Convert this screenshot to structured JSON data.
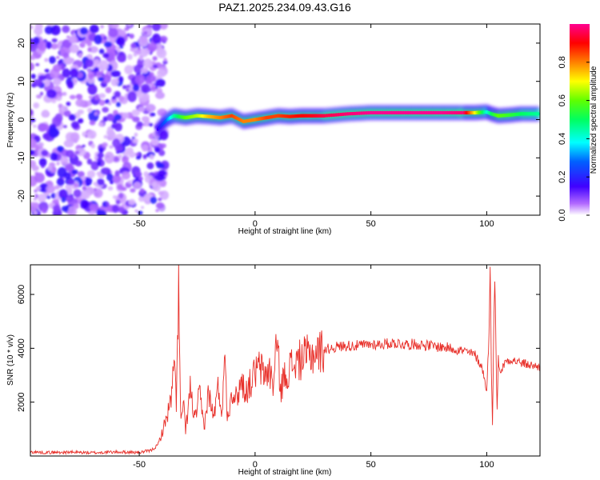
{
  "chart_data": [
    {
      "type": "heatmap",
      "title": "PAZ1.2025.234.09.43.G16",
      "xlabel": "Height of straight line (km)",
      "ylabel": "Frequency (Hz)",
      "xlim": [
        -97,
        123
      ],
      "ylim": [
        -25,
        25
      ],
      "xticks": [
        -50,
        0,
        50,
        100
      ],
      "xtick_labels": [
        "-50",
        "0",
        "50",
        "100"
      ],
      "yticks": [
        -20,
        -10,
        0,
        10,
        20
      ],
      "ytick_labels": [
        "-20",
        "-10",
        "0",
        "10",
        "20"
      ],
      "noise_region_x": [
        -97,
        -40
      ],
      "ridge": {
        "x": [
          -42,
          -38,
          -35,
          -30,
          -25,
          -20,
          -15,
          -10,
          -5,
          0,
          5,
          10,
          15,
          20,
          25,
          30,
          40,
          50,
          60,
          70,
          80,
          90,
          95,
          100,
          102,
          105,
          110,
          115,
          123
        ],
        "freq_hz": [
          -2.5,
          0,
          1,
          0.5,
          1,
          0.8,
          0.5,
          1,
          -0.5,
          0,
          0.5,
          1,
          0.8,
          1,
          1,
          1,
          1.5,
          1.8,
          1.8,
          1.8,
          1.8,
          1.8,
          1.8,
          2,
          1.5,
          1,
          1.2,
          1.5,
          1.5
        ],
        "amplitude": [
          0.15,
          0.3,
          0.45,
          0.6,
          0.65,
          0.75,
          0.8,
          0.85,
          0.8,
          0.8,
          0.85,
          0.85,
          0.88,
          0.9,
          0.92,
          0.95,
          0.98,
          1,
          1,
          1,
          1,
          0.98,
          0.7,
          0.4,
          0.5,
          0.6,
          0.55,
          0.5,
          0.45
        ]
      },
      "colorbar": {
        "label": "Normalized spectral amplitude",
        "range": [
          0,
          1
        ],
        "ticks": [
          0,
          0.2,
          0.4,
          0.6,
          0.8
        ],
        "tick_labels": [
          "0.0",
          "0.2",
          "0.4",
          "0.6",
          "0.8"
        ]
      }
    },
    {
      "type": "line",
      "title": "",
      "xlabel": "Height of straight line (km)",
      "ylabel": "SNR (10 * v/v)",
      "xlim": [
        -97,
        123
      ],
      "ylim": [
        0,
        7100
      ],
      "xticks": [
        -50,
        0,
        50,
        100
      ],
      "xtick_labels": [
        "-50",
        "0",
        "50",
        "100"
      ],
      "yticks": [
        2000,
        4000,
        6000
      ],
      "ytick_labels": [
        "2000",
        "4000",
        "6000"
      ],
      "series": [
        {
          "name": "SNR",
          "color": "#e8302a",
          "x": [
            -97,
            -90,
            -80,
            -70,
            -60,
            -50,
            -45,
            -42,
            -40,
            -38,
            -36,
            -35,
            -34,
            -33,
            -32.5,
            -32,
            -31,
            -30,
            -28,
            -26,
            -24,
            -22,
            -20,
            -18,
            -16,
            -14,
            -13,
            -12,
            -10,
            -8,
            -6,
            -4,
            -2,
            0,
            2,
            4,
            6,
            8,
            9,
            10,
            11,
            12,
            15,
            20,
            25,
            30,
            35,
            40,
            45,
            50,
            55,
            60,
            65,
            70,
            75,
            80,
            85,
            90,
            95,
            98,
            100,
            101,
            101.5,
            102,
            102.5,
            103,
            103.5,
            104,
            104.5,
            105,
            106,
            108,
            110,
            115,
            120,
            123
          ],
          "values": [
            150,
            130,
            140,
            120,
            150,
            130,
            200,
            400,
            900,
            1500,
            2200,
            3500,
            2000,
            6500,
            3000,
            1200,
            2000,
            900,
            2500,
            1300,
            2300,
            1100,
            2400,
            1400,
            2500,
            1600,
            4500,
            1300,
            2500,
            2100,
            2800,
            2400,
            2700,
            3100,
            3300,
            3000,
            3200,
            2600,
            4200,
            3700,
            2400,
            2800,
            3300,
            3600,
            3800,
            3950,
            4050,
            4100,
            4100,
            4150,
            4150,
            4200,
            4150,
            4150,
            4100,
            4050,
            4000,
            3900,
            3750,
            3300,
            2400,
            4600,
            7000,
            3100,
            1200,
            4800,
            6800,
            3800,
            1700,
            3600,
            3100,
            3500,
            3600,
            3450,
            3350,
            3300
          ]
        }
      ]
    }
  ]
}
